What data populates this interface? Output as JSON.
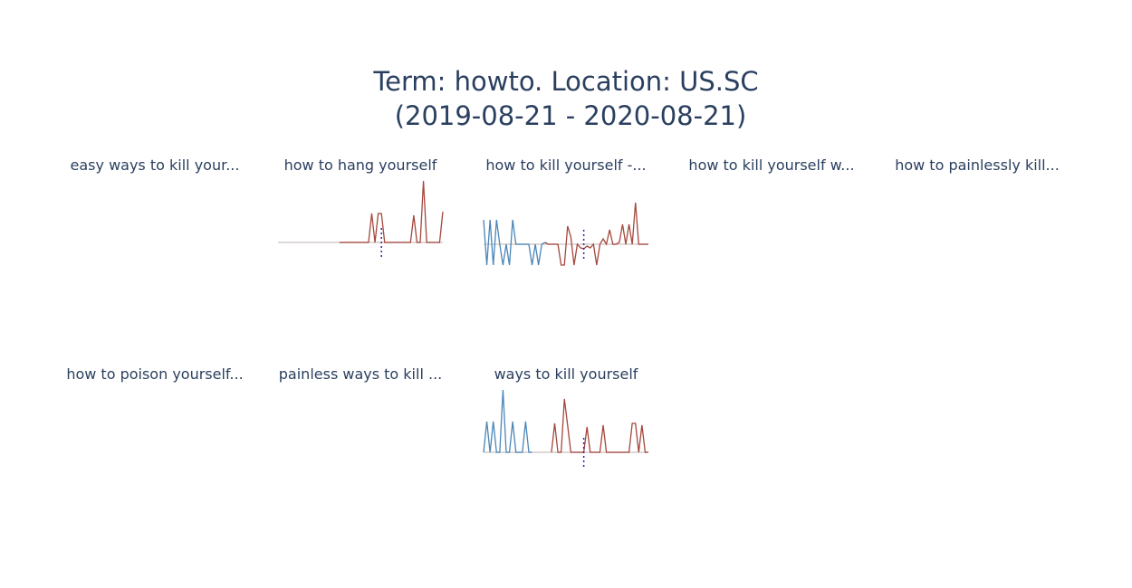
{
  "title": [
    "Term: howto. Location: US.SC",
    "(2019-08-21 - 2020-08-21)"
  ],
  "chart_data": [
    {
      "type": "line",
      "title": "easy ways to kill your...",
      "series": []
    },
    {
      "type": "line",
      "title": "how to hang yourself",
      "ylim": [
        -30,
        70
      ],
      "vline_x": 32,
      "series": [
        {
          "color": "#a5473d",
          "values": [
            null,
            null,
            null,
            null,
            null,
            null,
            null,
            null,
            null,
            null,
            null,
            null,
            null,
            null,
            null,
            null,
            null,
            null,
            null,
            0,
            0,
            0,
            0,
            0,
            0,
            0,
            0,
            0,
            0,
            32,
            0,
            32,
            32,
            0,
            0,
            0,
            0,
            0,
            0,
            0,
            0,
            0,
            30,
            0,
            0,
            68,
            0,
            0,
            0,
            0,
            0,
            34
          ]
        }
      ]
    },
    {
      "type": "line",
      "title": "how to kill yourself -...",
      "ylim": [
        -28,
        72
      ],
      "vline_x": 31,
      "series": [
        {
          "color": "#4a86b8",
          "values": [
            27,
            -23,
            27,
            -23,
            27,
            0,
            -23,
            0,
            -23,
            27,
            0,
            0,
            0,
            0,
            0,
            -23,
            0,
            -23,
            0,
            2,
            null,
            null,
            null,
            null,
            null,
            null,
            null,
            null,
            null,
            null,
            null,
            null,
            null,
            null,
            null,
            null,
            null,
            null,
            null,
            null,
            null,
            null,
            null,
            null,
            null,
            null,
            null,
            null,
            null,
            null,
            null,
            null
          ]
        },
        {
          "color": "#a5473d",
          "values": [
            null,
            null,
            null,
            null,
            null,
            null,
            null,
            null,
            null,
            null,
            null,
            null,
            null,
            null,
            null,
            null,
            null,
            null,
            null,
            2,
            0,
            0,
            0,
            0,
            -23,
            -23,
            20,
            8,
            -23,
            0,
            -4,
            -5,
            -2,
            -4,
            0,
            -23,
            0,
            6,
            0,
            16,
            0,
            0,
            2,
            22,
            0,
            22,
            0,
            46,
            0,
            0,
            0,
            0
          ]
        }
      ]
    },
    {
      "type": "line",
      "title": "how to kill yourself w...",
      "series": []
    },
    {
      "type": "line",
      "title": "how to painlessly kill...",
      "series": []
    },
    {
      "type": "line",
      "title": "how to poison yourself...",
      "series": []
    },
    {
      "type": "line",
      "title": "painless ways to kill ...",
      "series": []
    },
    {
      "type": "line",
      "title": "ways to kill yourself",
      "ylim": [
        -29,
        71
      ],
      "vline_x": 31,
      "series": [
        {
          "color": "#4a86b8",
          "values": [
            0,
            34,
            0,
            34,
            0,
            0,
            69,
            0,
            0,
            34,
            0,
            0,
            0,
            34,
            0,
            0,
            null,
            null,
            null,
            null,
            null,
            null,
            null,
            null,
            null,
            null,
            null,
            null,
            null,
            null,
            null,
            null,
            null,
            null,
            null,
            null,
            null,
            null,
            null,
            null,
            null,
            null,
            null,
            null,
            null,
            null,
            null,
            null,
            null,
            null,
            null,
            null
          ]
        },
        {
          "color": "#a5473d",
          "values": [
            null,
            null,
            null,
            null,
            null,
            null,
            null,
            null,
            null,
            null,
            null,
            null,
            null,
            null,
            null,
            null,
            null,
            null,
            null,
            null,
            null,
            0,
            32,
            0,
            0,
            59,
            30,
            0,
            0,
            0,
            0,
            0,
            28,
            0,
            0,
            0,
            0,
            30,
            0,
            0,
            0,
            0,
            0,
            0,
            0,
            0,
            32,
            32,
            0,
            30,
            0,
            0
          ]
        }
      ]
    }
  ]
}
